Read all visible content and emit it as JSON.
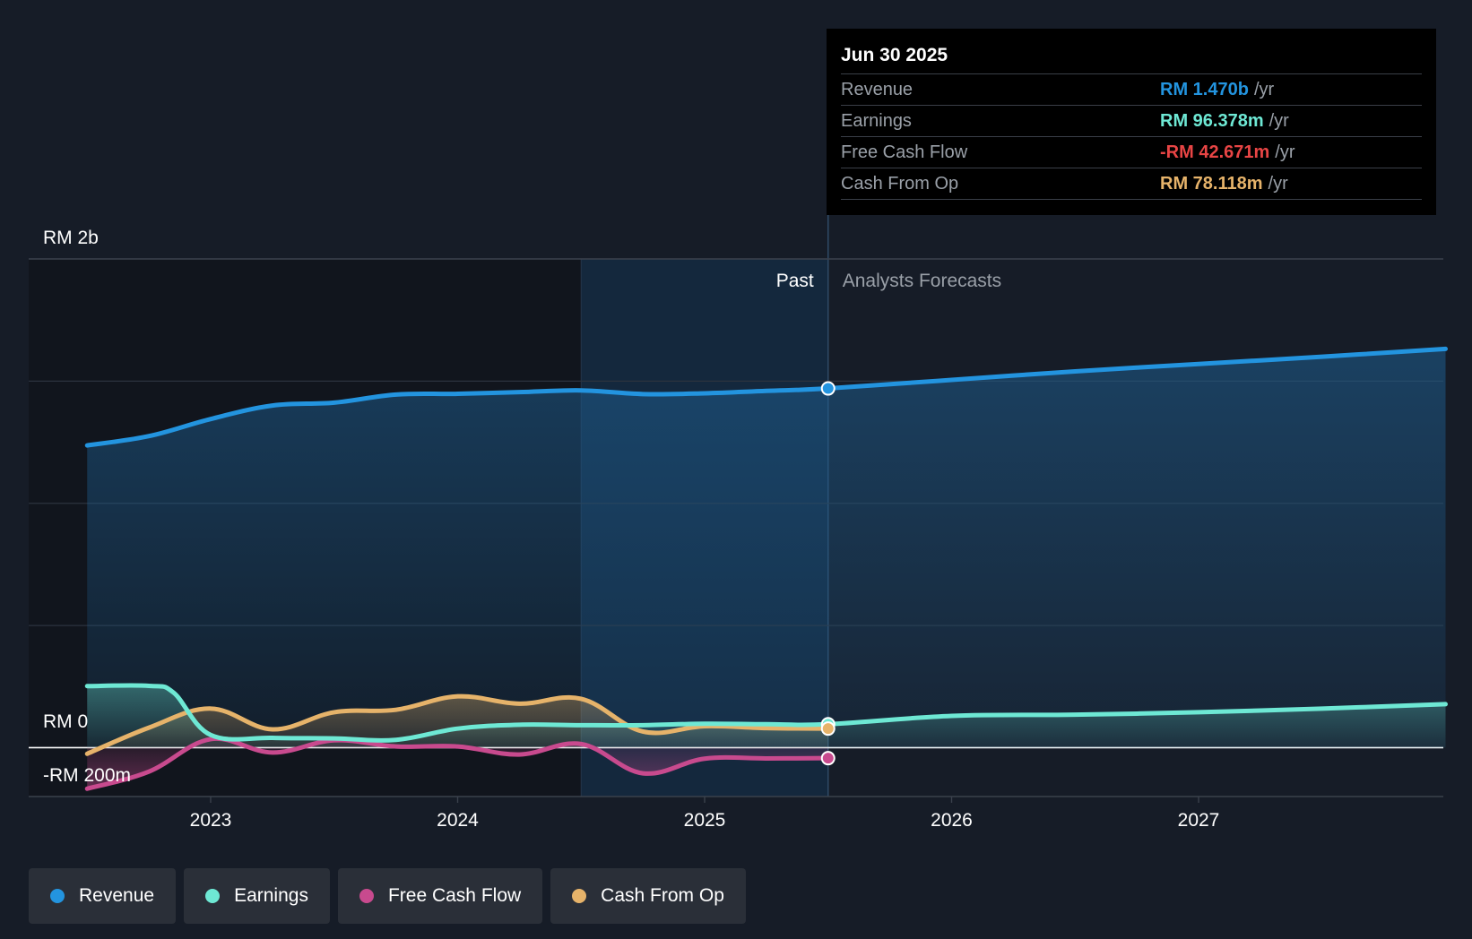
{
  "chart_data": {
    "type": "area",
    "x_labels": [
      "2023",
      "2024",
      "2025",
      "2026",
      "2027"
    ],
    "y_labels": {
      "top": "RM 2b",
      "zero": "RM 0",
      "bottom": "-RM 200m"
    },
    "ylim": [
      -200,
      2000
    ],
    "divider_labels": {
      "past": "Past",
      "forecast": "Analysts Forecasts"
    },
    "divider_x": 2025.5,
    "highlight_range": [
      2024.5,
      2025.5
    ],
    "series": [
      {
        "name": "Revenue",
        "color": "#2394df",
        "x": [
          2022.5,
          2022.75,
          2023.0,
          2023.25,
          2023.5,
          2023.75,
          2024.0,
          2024.25,
          2024.5,
          2024.75,
          2025.0,
          2025.25,
          2025.5,
          2026.0,
          2026.5,
          2027.0,
          2027.5,
          2028.0
        ],
        "values": [
          1237,
          1275,
          1345,
          1400,
          1412,
          1445,
          1448,
          1455,
          1462,
          1447,
          1450,
          1460,
          1470,
          1505,
          1540,
          1570,
          1600,
          1632
        ],
        "forecast_from": 12
      },
      {
        "name": "Earnings",
        "color": "#6ee8d4",
        "x": [
          2022.5,
          2022.75,
          2022.85,
          2023.0,
          2023.25,
          2023.5,
          2023.75,
          2024.0,
          2024.25,
          2024.5,
          2024.75,
          2025.0,
          2025.25,
          2025.5,
          2026.0,
          2026.5,
          2027.0,
          2027.5,
          2028.0
        ],
        "values": [
          252,
          253,
          225,
          52,
          40,
          38,
          32,
          78,
          94,
          92,
          92,
          98,
          96,
          96,
          130,
          135,
          145,
          160,
          178
        ],
        "forecast_from": 13
      },
      {
        "name": "Free Cash Flow",
        "color": "#c84a8e",
        "x": [
          2022.5,
          2022.75,
          2023.0,
          2023.25,
          2023.5,
          2023.75,
          2024.0,
          2024.25,
          2024.5,
          2024.75,
          2025.0,
          2025.25,
          2025.5
        ],
        "values": [
          -168,
          -98,
          35,
          -20,
          30,
          5,
          5,
          -28,
          15,
          -105,
          -45,
          -44,
          -43
        ]
      },
      {
        "name": "Cash From Op",
        "color": "#e6b36a",
        "x": [
          2022.5,
          2022.75,
          2023.0,
          2023.25,
          2023.5,
          2023.75,
          2024.0,
          2024.25,
          2024.5,
          2024.75,
          2025.0,
          2025.25,
          2025.5
        ],
        "values": [
          -25,
          82,
          160,
          75,
          145,
          155,
          210,
          180,
          200,
          66,
          88,
          80,
          78
        ]
      }
    ]
  },
  "tooltip": {
    "date": "Jun 30 2025",
    "rows": [
      {
        "label": "Revenue",
        "value": "RM 1.470b",
        "unit": "/yr",
        "color": "#2394df"
      },
      {
        "label": "Earnings",
        "value": "RM 96.378m",
        "unit": "/yr",
        "color": "#6ee8d4"
      },
      {
        "label": "Free Cash Flow",
        "value": "-RM 42.671m",
        "unit": "/yr",
        "color": "#e84545"
      },
      {
        "label": "Cash From Op",
        "value": "RM 78.118m",
        "unit": "/yr",
        "color": "#e6b36a"
      }
    ]
  },
  "legend": [
    {
      "label": "Revenue",
      "color": "#2394df"
    },
    {
      "label": "Earnings",
      "color": "#6ee8d4"
    },
    {
      "label": "Free Cash Flow",
      "color": "#c84a8e"
    },
    {
      "label": "Cash From Op",
      "color": "#e6b36a"
    }
  ]
}
